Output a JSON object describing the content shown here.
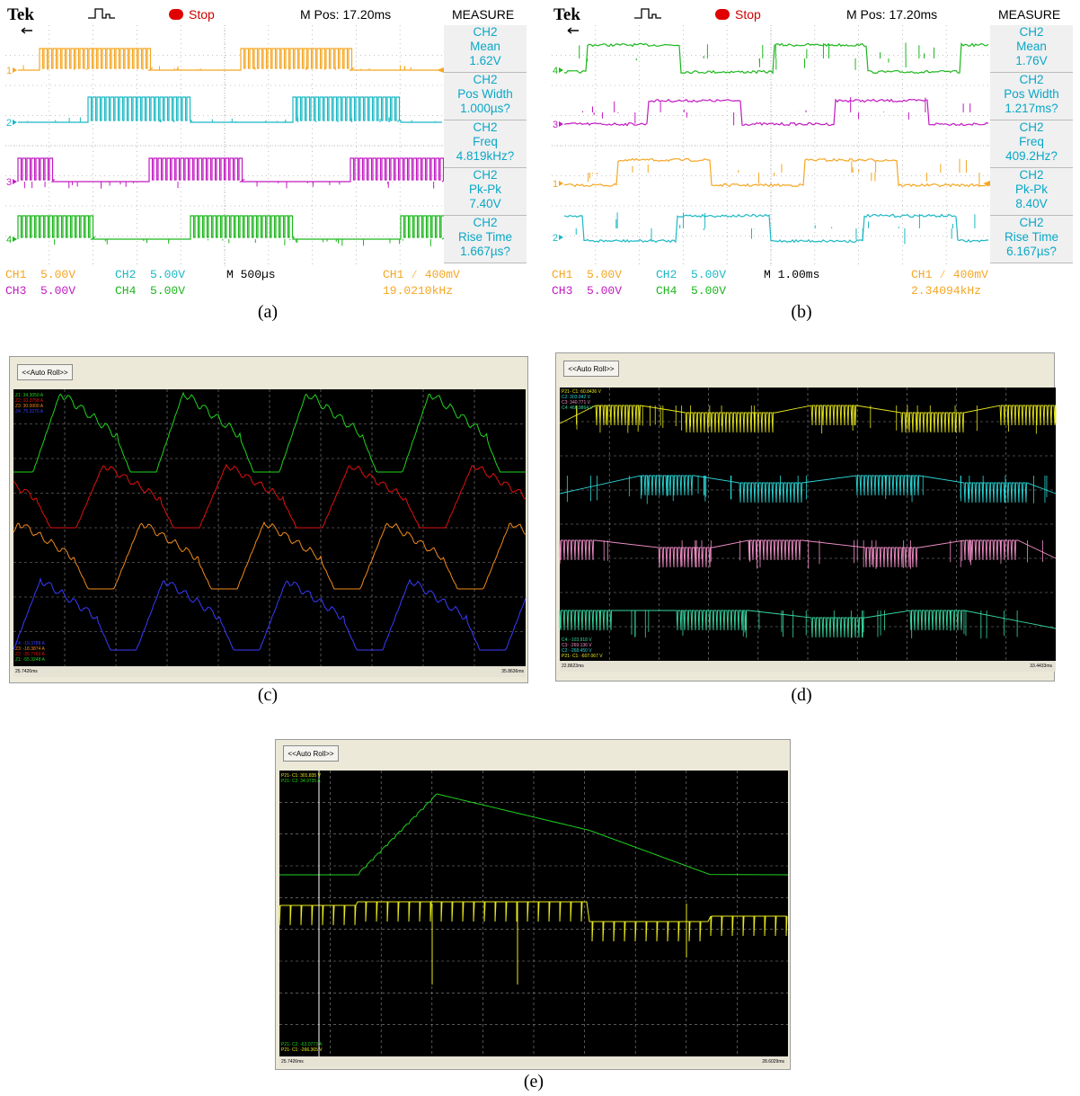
{
  "captions": {
    "a": "(a)",
    "b": "(b)",
    "c": "(c)",
    "d": "(d)",
    "e": "(e)"
  },
  "scope_a": {
    "brand": "Tek",
    "status": "Stop",
    "mpos": "M Pos: 17.20ms",
    "measure_title": "MEASURE",
    "measurements": [
      {
        "ch": "CH2",
        "name": "Mean",
        "value": "1.62V"
      },
      {
        "ch": "CH2",
        "name": "Pos Width",
        "value": "1.000µs?"
      },
      {
        "ch": "CH2",
        "name": "Freq",
        "value": "4.819kHz?"
      },
      {
        "ch": "CH2",
        "name": "Pk-Pk",
        "value": "7.40V"
      },
      {
        "ch": "CH2",
        "name": "Rise Time",
        "value": "1.667µs?"
      }
    ],
    "ch1_scale": "CH1  5.00V",
    "ch2_scale": "CH2  5.00V",
    "ch3_scale": "CH3  5.00V",
    "ch4_scale": "CH4  5.00V",
    "timebase": "M 500µs",
    "trigger": "CH1 ∕ 400mV",
    "trigger_freq": "19.0210kHz",
    "markers": [
      "1",
      "2",
      "3",
      "4"
    ]
  },
  "scope_b": {
    "brand": "Tek",
    "status": "Stop",
    "mpos": "M Pos: 17.20ms",
    "measure_title": "MEASURE",
    "measurements": [
      {
        "ch": "CH2",
        "name": "Mean",
        "value": "1.76V"
      },
      {
        "ch": "CH2",
        "name": "Pos Width",
        "value": "1.217ms?"
      },
      {
        "ch": "CH2",
        "name": "Freq",
        "value": "409.2Hz?"
      },
      {
        "ch": "CH2",
        "name": "Pk-Pk",
        "value": "8.40V"
      },
      {
        "ch": "CH2",
        "name": "Rise Time",
        "value": "6.167µs?"
      }
    ],
    "ch1_scale": "CH1  5.00V",
    "ch2_scale": "CH2  5.00V",
    "ch3_scale": "CH3  5.00V",
    "ch4_scale": "CH4  5.00V",
    "timebase": "M 1.00ms",
    "trigger": "CH1 ∕ 400mV",
    "trigger_freq": "2.34094kHz",
    "markers": [
      "4",
      "3",
      "1",
      "2"
    ]
  },
  "scope_c": {
    "button": "<<Auto Roll>>",
    "top_labels": [
      "Z1: 34.3050 A",
      "Z2: 10.3758 A",
      "Z3: 30.0000 A",
      "Z4: 75.3270 A"
    ],
    "bottom_labels": [
      "Z4: -19.3788 A",
      "Z3: -18.3874 A",
      "Z2: -35.7760 A",
      "Z1: -55.3248 A"
    ],
    "time_start": "25.7426ms",
    "time_end": "35.8636ms"
  },
  "scope_d": {
    "button": "<<Auto Roll>>",
    "top_labels": [
      "P21- C1: 60.8436 V",
      "C2: 303.942 V",
      "C3: 340.771 V",
      "C4: 466.9864 V"
    ],
    "bottom_labels": [
      "C4: -103.918 V",
      "C3: -269.136 V",
      "C2: -268.450 V",
      "P21- C1: -607.067 V"
    ],
    "time_start": "22.8623ms",
    "time_end": "33.4433ms"
  },
  "scope_e": {
    "button": "<<Auto Roll>>",
    "top_labels": [
      "P21- C1: 301.835 V",
      "P21- C2: 34.9735 A"
    ],
    "bottom_labels": [
      "P21- C2: -63.0773 A",
      "P21- C1: -266.365 V"
    ],
    "time_start": "25.7426ms",
    "time_end": "28.6029ms"
  },
  "colors": {
    "ch1": "#f5a623",
    "ch2": "#1bb8c4",
    "ch3": "#c21ac2",
    "ch4": "#1cb61c",
    "green": "#1fd21f",
    "red": "#e01010",
    "orange": "#f08a1a",
    "blue": "#3a3aff",
    "yellow": "#e8e81c",
    "cyan": "#2ad6d6",
    "pink": "#f28fc8",
    "teal": "#38d8a0"
  }
}
